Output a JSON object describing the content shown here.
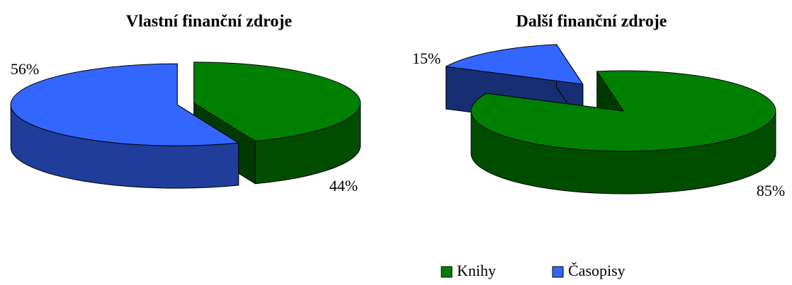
{
  "chart_data": [
    {
      "type": "pie",
      "title": "Vlastní finanční zdroje",
      "categories": [
        "Knihy",
        "Časopisy"
      ],
      "values": [
        44,
        56
      ],
      "value_labels": [
        "44%",
        "56%"
      ],
      "colors": [
        "#008000",
        "#3366ff"
      ]
    },
    {
      "type": "pie",
      "title": "Další finanční zdroje",
      "categories": [
        "Knihy",
        "Časopisy"
      ],
      "values": [
        85,
        15
      ],
      "value_labels": [
        "85%",
        "15%"
      ],
      "colors": [
        "#008000",
        "#3366ff"
      ],
      "legend": "bottom-right"
    }
  ]
}
